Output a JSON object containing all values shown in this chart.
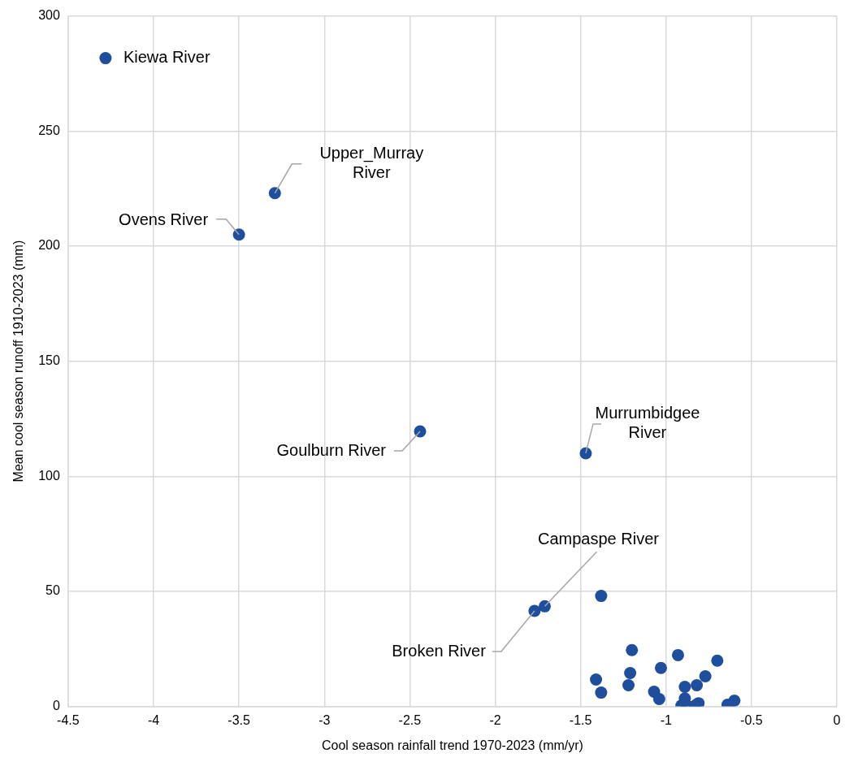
{
  "chart_data": {
    "type": "scatter",
    "xlabel": "Cool season rainfall trend 1970-2023 (mm/yr)",
    "ylabel": "Mean cool season runoff 1910-2023 (mm)",
    "xlim": [
      -4.5,
      0
    ],
    "xticks": [
      -4.5,
      -4,
      -3.5,
      -3,
      -2.5,
      -2,
      -1.5,
      -1,
      -0.5,
      0
    ],
    "ylim": [
      0,
      300
    ],
    "yticks": [
      0,
      50,
      100,
      150,
      200,
      250,
      300
    ],
    "grid": true,
    "legend": "top left",
    "marker": "circle",
    "series": [
      {
        "name": "Kiewa River",
        "color": "#1f4e9c",
        "x": [
          -3.5,
          -3.29,
          -2.44,
          -1.47,
          -1.77,
          -1.71,
          -1.38,
          -1.2,
          -1.41,
          -1.38,
          -1.21,
          -1.22,
          -1.03,
          -1.07,
          -1.04,
          -0.93,
          -0.89,
          -0.89,
          -0.91,
          -0.88,
          -0.82,
          -0.77,
          -0.7,
          -0.81,
          -0.83,
          -0.64,
          -0.6
        ],
        "values": [
          205,
          223,
          119.5,
          110,
          41.5,
          43.5,
          48,
          24.5,
          11.7,
          6,
          14.5,
          9.2,
          16.7,
          6.4,
          3.2,
          22.3,
          8.5,
          3.5,
          0.4,
          0.4,
          9.2,
          13.1,
          19.9,
          1.4,
          0.4,
          0.7,
          2.5
        ]
      }
    ],
    "annotations": [
      {
        "text": "Ovens River",
        "x": -3.5,
        "y": 205
      },
      {
        "text": "Upper_Murray River",
        "x": -3.29,
        "y": 223
      },
      {
        "text": "Goulburn River",
        "x": -2.44,
        "y": 119.5
      },
      {
        "text": "Murrumbidgee River",
        "x": -1.47,
        "y": 110
      },
      {
        "text": "Campaspe River",
        "x": -1.71,
        "y": 43.5
      },
      {
        "text": "Broken River",
        "x": -1.77,
        "y": 41.5
      }
    ]
  }
}
